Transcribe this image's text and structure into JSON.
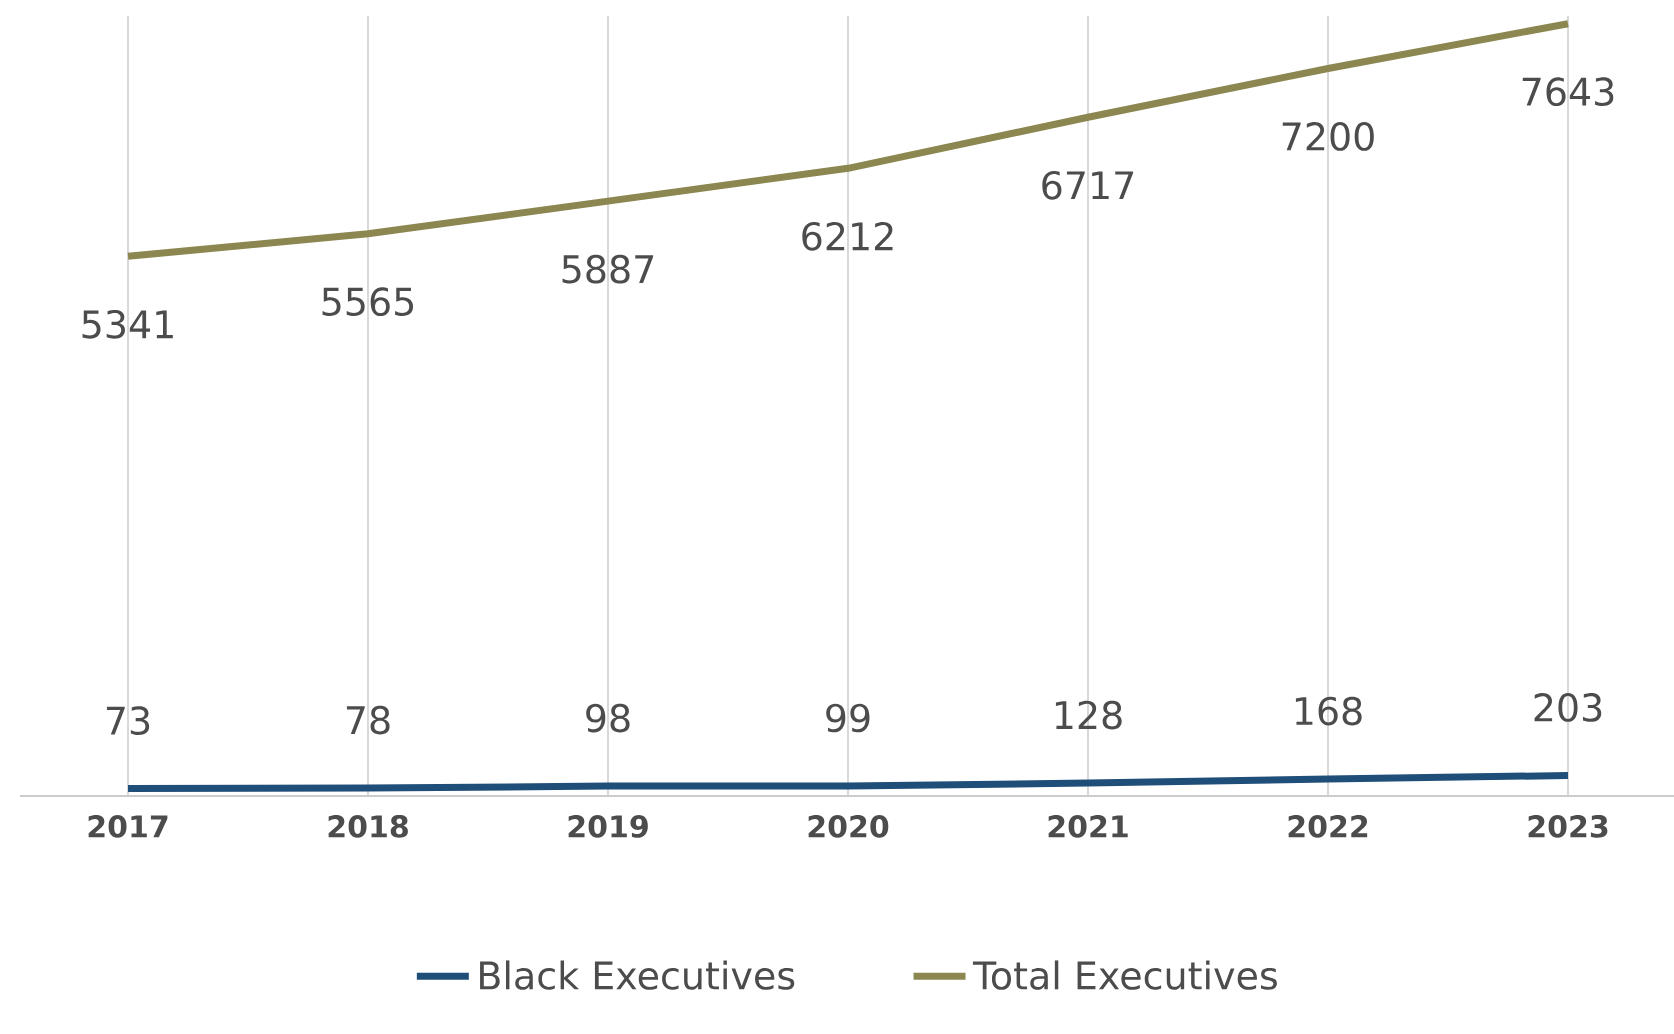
{
  "chart_data": {
    "type": "line",
    "categories": [
      "2017",
      "2018",
      "2019",
      "2020",
      "2021",
      "2022",
      "2023"
    ],
    "series": [
      {
        "name": "Black Executives",
        "color": "#1f4e79",
        "values": [
          73,
          78,
          98,
          99,
          128,
          168,
          203
        ]
      },
      {
        "name": "Total Executives",
        "color": "#8c8650",
        "values": [
          5341,
          5565,
          5887,
          6212,
          6717,
          7200,
          7643
        ]
      }
    ],
    "data_labels": true,
    "grid": "x",
    "legend": "bottom",
    "marker": "none",
    "line_style": "solid"
  }
}
